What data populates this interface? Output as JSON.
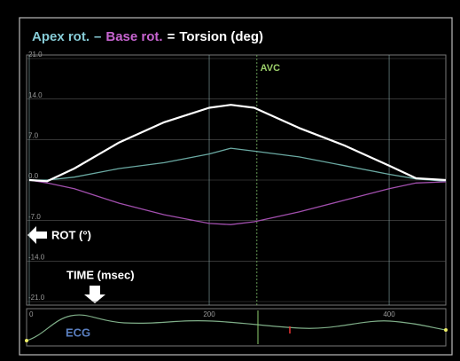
{
  "chart_data": {
    "type": "line",
    "title_operators": [
      "–",
      "="
    ],
    "x": [
      0,
      20,
      50,
      100,
      150,
      200,
      224,
      250,
      300,
      350,
      400,
      430,
      463
    ],
    "series": [
      {
        "name": "Apex rot.",
        "color": "#6aa9a2",
        "label_color": "#86cbd6",
        "values": [
          0,
          0,
          0.5,
          2,
          3,
          4.5,
          5.5,
          5,
          4,
          2.5,
          1,
          0.2,
          -0.2
        ]
      },
      {
        "name": "Base rot.",
        "color": "#a24fae",
        "label_color": "#c764d0",
        "values": [
          0,
          -0.5,
          -1.5,
          -4,
          -6,
          -7.5,
          -7.7,
          -7.2,
          -5.5,
          -3.5,
          -1.5,
          -0.5,
          -0.3
        ]
      },
      {
        "name": "Torsion (deg)",
        "color": "#ffffff",
        "label_color": "#ffffff",
        "values": [
          0,
          -0.2,
          2,
          6.5,
          10,
          12.5,
          13,
          12.5,
          9,
          6,
          2.5,
          0.3,
          0
        ]
      }
    ],
    "xlim": [
      0,
      463
    ],
    "ylim": [
      -21,
      21
    ],
    "xticks": [
      0,
      200,
      400
    ],
    "yticks": [
      {
        "value": 21,
        "label": "21.0"
      },
      {
        "value": 14,
        "label": "14.0"
      },
      {
        "value": 7,
        "label": "7.0"
      },
      {
        "value": 0,
        "label": "0.0"
      },
      {
        "value": -7,
        "label": "-7.0"
      },
      {
        "value": -14,
        "label": "-14.0"
      },
      {
        "value": -21,
        "label": "-21.0"
      }
    ],
    "grid": true,
    "annotations": [
      {
        "text": "AVC",
        "x": 253
      }
    ],
    "y_axis_label": "ROT (°)",
    "x_axis_label": "TIME (msec)",
    "ecg_label": "ECG"
  }
}
